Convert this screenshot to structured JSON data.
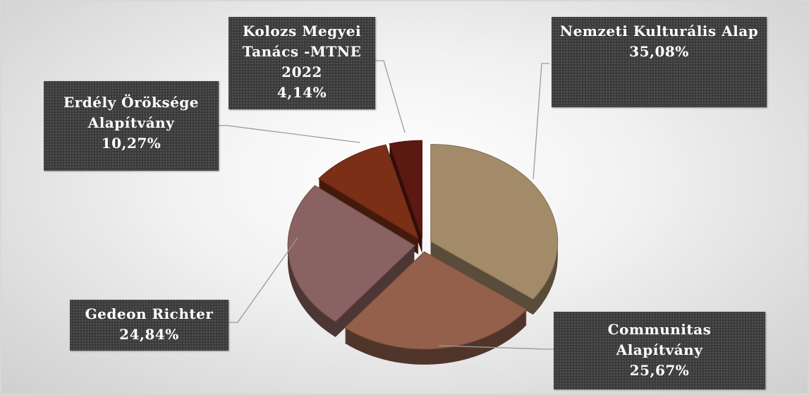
{
  "chart_data": {
    "type": "pie",
    "categories": [
      "Nemzeti Kulturális Alap",
      "Communitas Alapítvány",
      "Gedeon Richter",
      "Erdély Öröksége Alapítvány",
      "Kolozs Megyei Tanács -MTNE 2022"
    ],
    "values": [
      35.08,
      25.67,
      24.84,
      10.27,
      4.14
    ],
    "value_labels": [
      "35,08%",
      "25,67%",
      "24,84%",
      "10,27%",
      "4,14%"
    ],
    "colors": [
      "#a38b69",
      "#94604c",
      "#8a6262",
      "#7b2f16",
      "#5c1912"
    ]
  }
}
